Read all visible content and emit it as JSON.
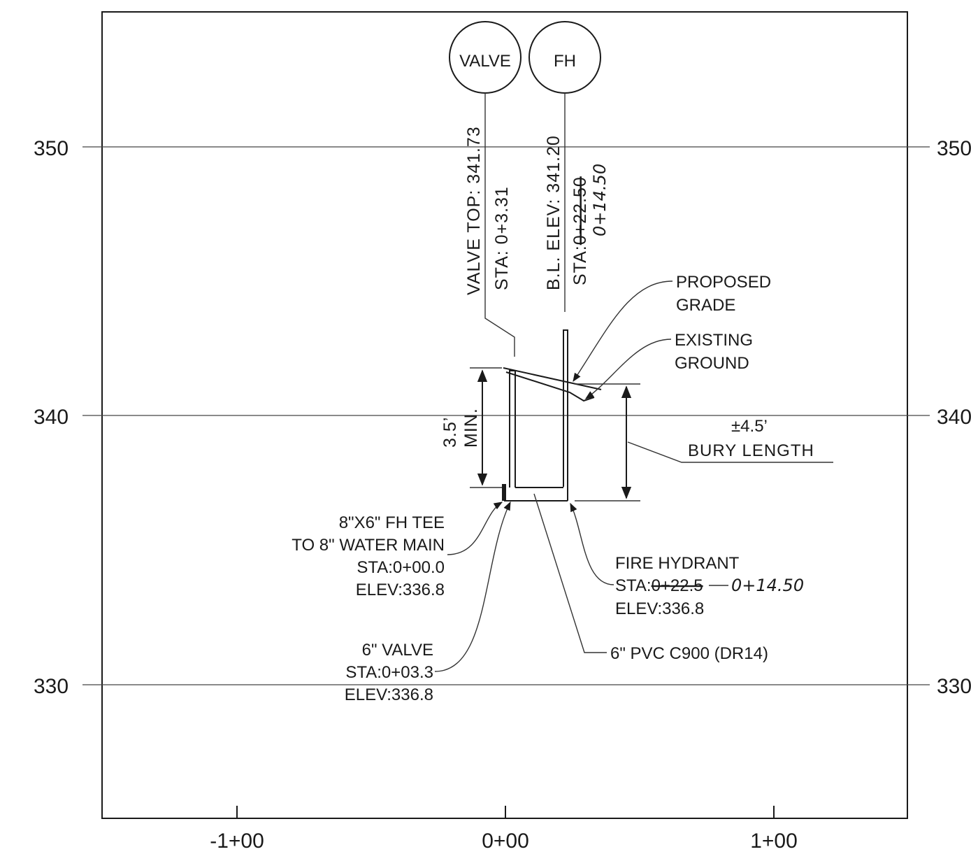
{
  "profile": {
    "elevations": [
      {
        "value": 350,
        "left_label": "350",
        "right_label": "350"
      },
      {
        "value": 340,
        "left_label": "340",
        "right_label": "340"
      },
      {
        "value": 330,
        "left_label": "330",
        "right_label": "330"
      }
    ],
    "stations": [
      "-1+00",
      "0+00",
      "1+00"
    ]
  },
  "bubbles": {
    "valve": "VALVE",
    "fh": "FH"
  },
  "vertical_notes": {
    "valve_top": "VALVE TOP: 341.73",
    "valve_sta": "STA: 0+3.31",
    "bl_elev": "B.L. ELEV: 341.20",
    "fh_sta_struck": "0+22.50",
    "fh_sta_prefix": "STA:",
    "fh_sta_handwritten": "0+14.50"
  },
  "callouts": {
    "proposed_grade": [
      "PROPOSED",
      "GRADE"
    ],
    "existing_ground": [
      "EXISTING",
      "GROUND"
    ],
    "bury": {
      "value": "±4.5’",
      "label": "BURY LENGTH"
    },
    "min_depth": {
      "value": "3.5’",
      "label": "MIN."
    },
    "fh_tee": [
      "8\"X6\" FH TEE",
      "TO 8\" WATER MAIN",
      "STA:0+00.0",
      "ELEV:336.8"
    ],
    "fire_hydrant": {
      "title": "FIRE HYDRANT",
      "sta_prefix": "STA:",
      "sta_struck": "0+22.5",
      "sta_handwritten": "0+14.50",
      "elev": "ELEV:336.8"
    },
    "valve": [
      "6\" VALVE",
      "STA:0+03.3",
      "ELEV:336.8"
    ],
    "pipe": "6\" PVC C900 (DR14)"
  }
}
